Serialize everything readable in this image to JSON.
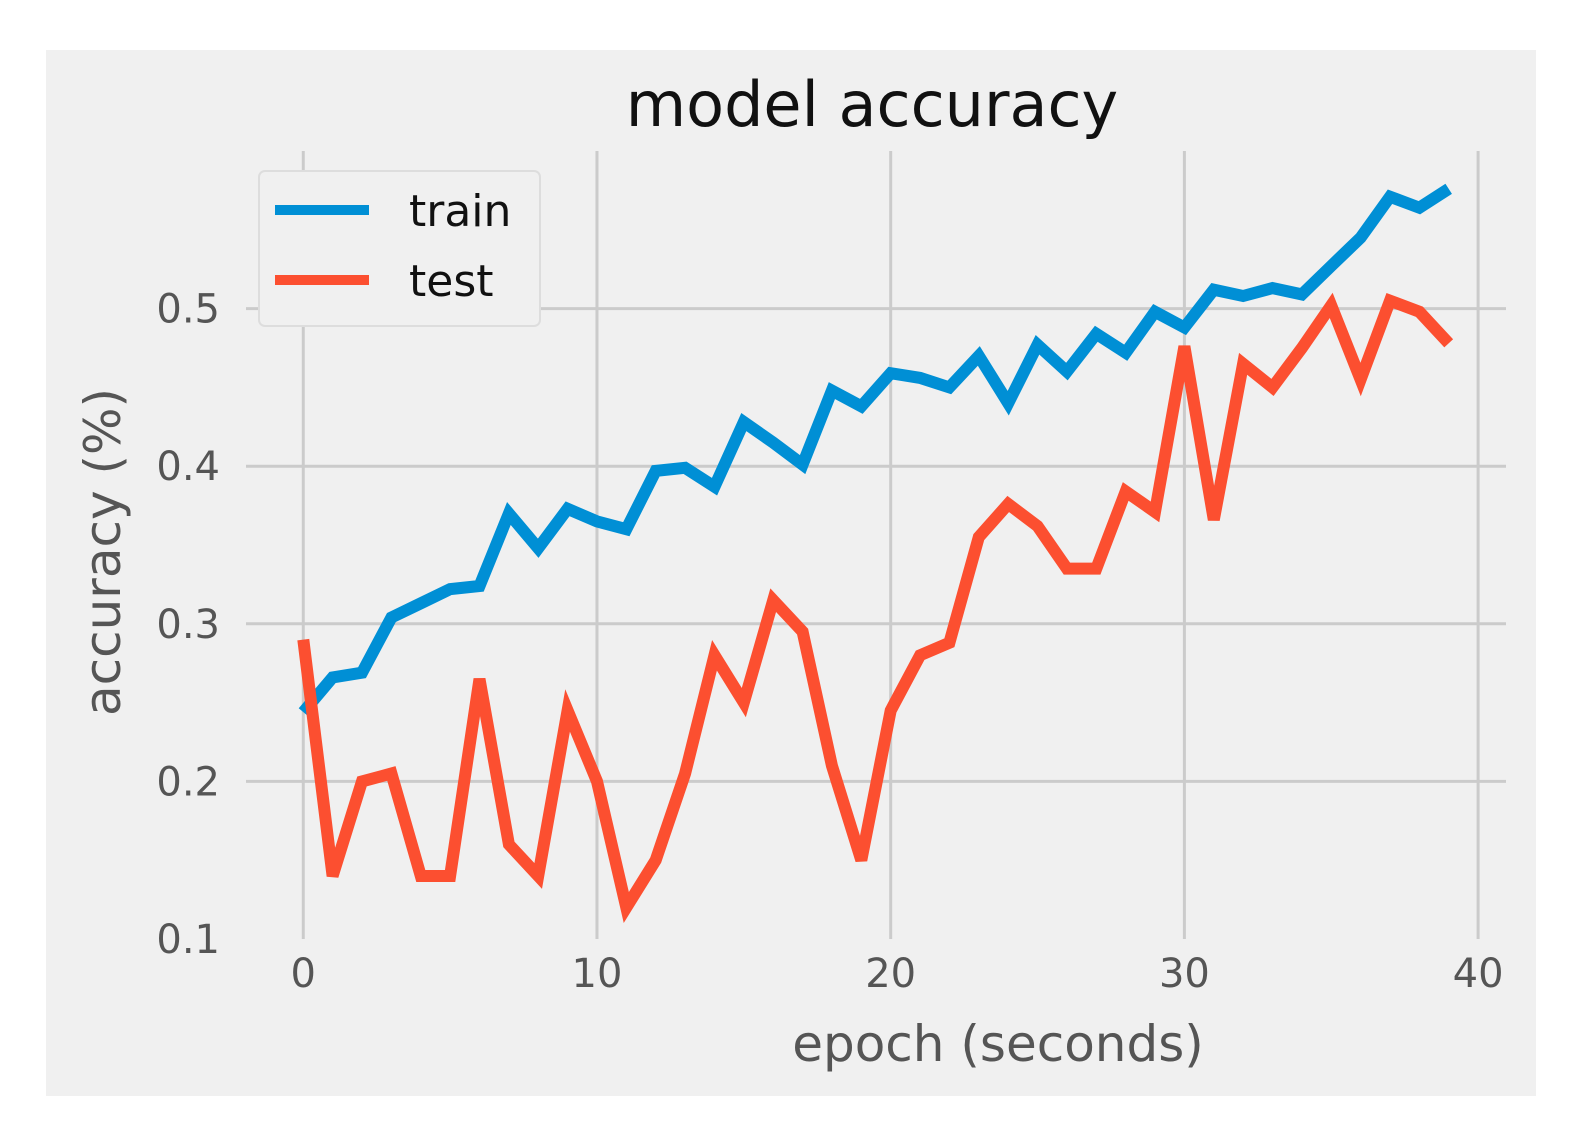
{
  "chart_data": {
    "type": "line",
    "title": "model accuracy",
    "xlabel": "epoch (seconds)",
    "ylabel": "accuracy (%)",
    "xlim": [
      -1.95,
      40.95
    ],
    "ylim": [
      0.1,
      0.6
    ],
    "xticks": [
      0,
      10,
      20,
      30,
      40
    ],
    "yticks": [
      0.1,
      0.2,
      0.3,
      0.4,
      0.5
    ],
    "xtick_labels": [
      "0",
      "10",
      "20",
      "30",
      "40"
    ],
    "ytick_labels": [
      "0.1",
      "0.2",
      "0.3",
      "0.4",
      "0.5"
    ],
    "grid": true,
    "legend_position": "top-left",
    "x": [
      0,
      1,
      2,
      3,
      4,
      5,
      6,
      7,
      8,
      9,
      10,
      11,
      12,
      13,
      14,
      15,
      16,
      17,
      18,
      19,
      20,
      21,
      22,
      23,
      24,
      25,
      26,
      27,
      28,
      29,
      30,
      31,
      32,
      33,
      34,
      35,
      36,
      37,
      38,
      39
    ],
    "series": [
      {
        "name": "train",
        "color": "#008fd5",
        "values": [
          0.244,
          0.266,
          0.269,
          0.304,
          0.313,
          0.322,
          0.324,
          0.37,
          0.348,
          0.373,
          0.365,
          0.36,
          0.397,
          0.399,
          0.387,
          0.428,
          0.415,
          0.401,
          0.448,
          0.438,
          0.459,
          0.456,
          0.45,
          0.47,
          0.44,
          0.477,
          0.46,
          0.484,
          0.472,
          0.498,
          0.488,
          0.512,
          0.508,
          0.513,
          0.509,
          0.527,
          0.545,
          0.571,
          0.564,
          0.576
        ]
      },
      {
        "name": "test",
        "color": "#fc4f30",
        "values": [
          0.29,
          0.14,
          0.2,
          0.205,
          0.14,
          0.14,
          0.265,
          0.16,
          0.14,
          0.245,
          0.2,
          0.12,
          0.15,
          0.205,
          0.28,
          0.25,
          0.315,
          0.295,
          0.21,
          0.15,
          0.245,
          0.28,
          0.288,
          0.355,
          0.376,
          0.362,
          0.335,
          0.335,
          0.384,
          0.371,
          0.476,
          0.366,
          0.465,
          0.45,
          0.475,
          0.502,
          0.455,
          0.505,
          0.498,
          0.478
        ]
      }
    ]
  }
}
